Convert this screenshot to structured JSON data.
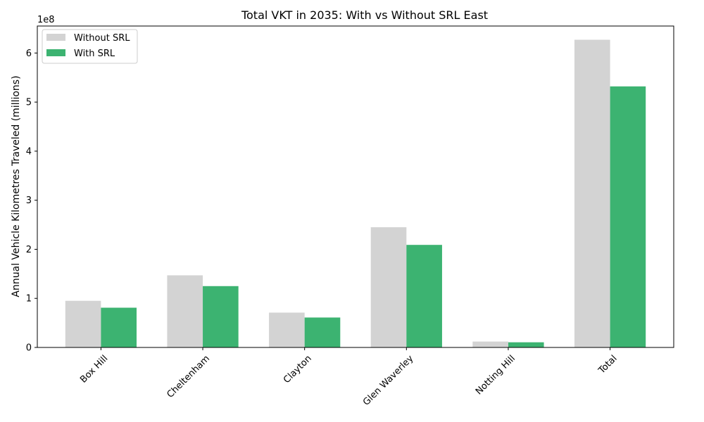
{
  "chart_data": {
    "type": "bar",
    "title": "Total VKT in 2035: With vs Without SRL East",
    "xlabel": "",
    "ylabel": "Annual Vehicle Kilometres Traveled (millions)",
    "y_offset_label": "1e8",
    "ylim": [
      0,
      655000000
    ],
    "yticks": [
      0,
      100000000,
      200000000,
      300000000,
      400000000,
      500000000,
      600000000
    ],
    "ytick_labels": [
      "0",
      "1",
      "2",
      "3",
      "4",
      "5",
      "6"
    ],
    "categories": [
      "Box Hill",
      "Cheltenham",
      "Clayton",
      "Glen Waverley",
      "Notting Hill",
      "Total"
    ],
    "series": [
      {
        "name": "Without SRL",
        "color": "#d3d3d3",
        "values": [
          95000000,
          147000000,
          71000000,
          245000000,
          12000000,
          627000000
        ]
      },
      {
        "name": "With SRL",
        "color": "#3cb371",
        "values": [
          81000000,
          125000000,
          61000000,
          209000000,
          10500000,
          532000000
        ]
      }
    ],
    "legend_position": "top-left",
    "grid": false
  }
}
